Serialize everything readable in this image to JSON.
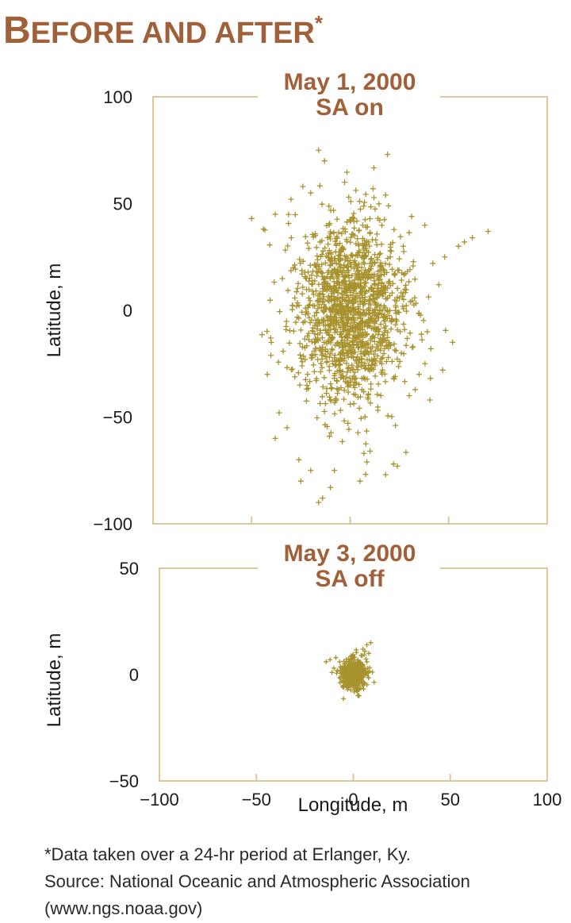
{
  "header": {
    "title_first": "B",
    "title_rest": "EFORE AND AFTER",
    "title_mark": "*"
  },
  "colors": {
    "title": "#a0603a",
    "point": "#a8922e",
    "frame": "#dcc89a"
  },
  "chart_data": [
    {
      "type": "scatter",
      "title": "May 1, 2000",
      "subtitle": "SA on",
      "ylabel": "Latitude, m",
      "xlabel": "",
      "xlim": [
        -100,
        100
      ],
      "ylim": [
        -100,
        100
      ],
      "yticks": [
        100,
        50,
        0,
        -50,
        -100
      ],
      "ytick_labels": [
        "100",
        "50",
        "0",
        "−50",
        "−100"
      ],
      "xticks": [
        -50,
        0,
        50
      ],
      "grid": false,
      "spread": {
        "x_sd": 14,
        "y_sd": 22
      },
      "points": [
        [
          -16,
          75
        ],
        [
          19,
          73
        ],
        [
          -13,
          70
        ],
        [
          -24,
          58
        ],
        [
          -20,
          55
        ],
        [
          18,
          54
        ],
        [
          -30,
          52
        ],
        [
          -50,
          43
        ],
        [
          -38,
          45
        ],
        [
          55,
          30
        ],
        [
          62,
          34
        ],
        [
          70,
          37
        ],
        [
          58,
          32
        ],
        [
          48,
          25
        ],
        [
          42,
          22
        ],
        [
          -44,
          38
        ],
        [
          45,
          12
        ],
        [
          52,
          -15
        ],
        [
          47,
          -28
        ],
        [
          38,
          -25
        ],
        [
          41,
          -18
        ],
        [
          -40,
          -15
        ],
        [
          -42,
          -30
        ],
        [
          -36,
          -48
        ],
        [
          -32,
          -55
        ],
        [
          -38,
          -60
        ],
        [
          -26,
          -70
        ],
        [
          -20,
          -75
        ],
        [
          -10,
          -83
        ],
        [
          -14,
          -88
        ],
        [
          -16,
          -90
        ],
        [
          7,
          -67
        ],
        [
          22,
          -72
        ],
        [
          18,
          -77
        ],
        [
          24,
          -73
        ],
        [
          5,
          -80
        ],
        [
          -25,
          -80
        ],
        [
          -8,
          -75
        ],
        [
          30,
          -40
        ],
        [
          35,
          -30
        ]
      ]
    },
    {
      "type": "scatter",
      "title": "May 3, 2000",
      "subtitle": "SA off",
      "ylabel": "Latitude, m",
      "xlabel": "Longitude, m",
      "xlim": [
        -100,
        100
      ],
      "ylim": [
        -50,
        50
      ],
      "yticks": [
        50,
        0,
        -50
      ],
      "ytick_labels": [
        "50",
        "0",
        "−50"
      ],
      "xticks": [
        -100,
        -50,
        0,
        50,
        100
      ],
      "xtick_labels": [
        "−100",
        "−50",
        "0",
        "50",
        "100"
      ],
      "grid": false,
      "spread": {
        "x_sd": 3.5,
        "y_sd": 3.5
      },
      "points": [
        [
          -12,
          7
        ],
        [
          -14,
          6
        ],
        [
          -9,
          8
        ],
        [
          5,
          12
        ],
        [
          7,
          14
        ],
        [
          9,
          15
        ],
        [
          6,
          11
        ],
        [
          8,
          10
        ],
        [
          -7,
          6
        ],
        [
          4,
          9
        ],
        [
          -6,
          -3
        ],
        [
          -5,
          -6
        ],
        [
          3,
          -7
        ],
        [
          2,
          -8
        ],
        [
          -3,
          -7
        ],
        [
          6,
          -4
        ],
        [
          -10,
          3
        ],
        [
          -11,
          1
        ],
        [
          7,
          6
        ],
        [
          5,
          4
        ]
      ]
    }
  ],
  "footnote": {
    "line1": "*Data taken over a 24-hr period at Erlanger, Ky.",
    "line2": "Source: National Oceanic and Atmospheric Association",
    "line3": "(www.ngs.noaa.gov)"
  }
}
